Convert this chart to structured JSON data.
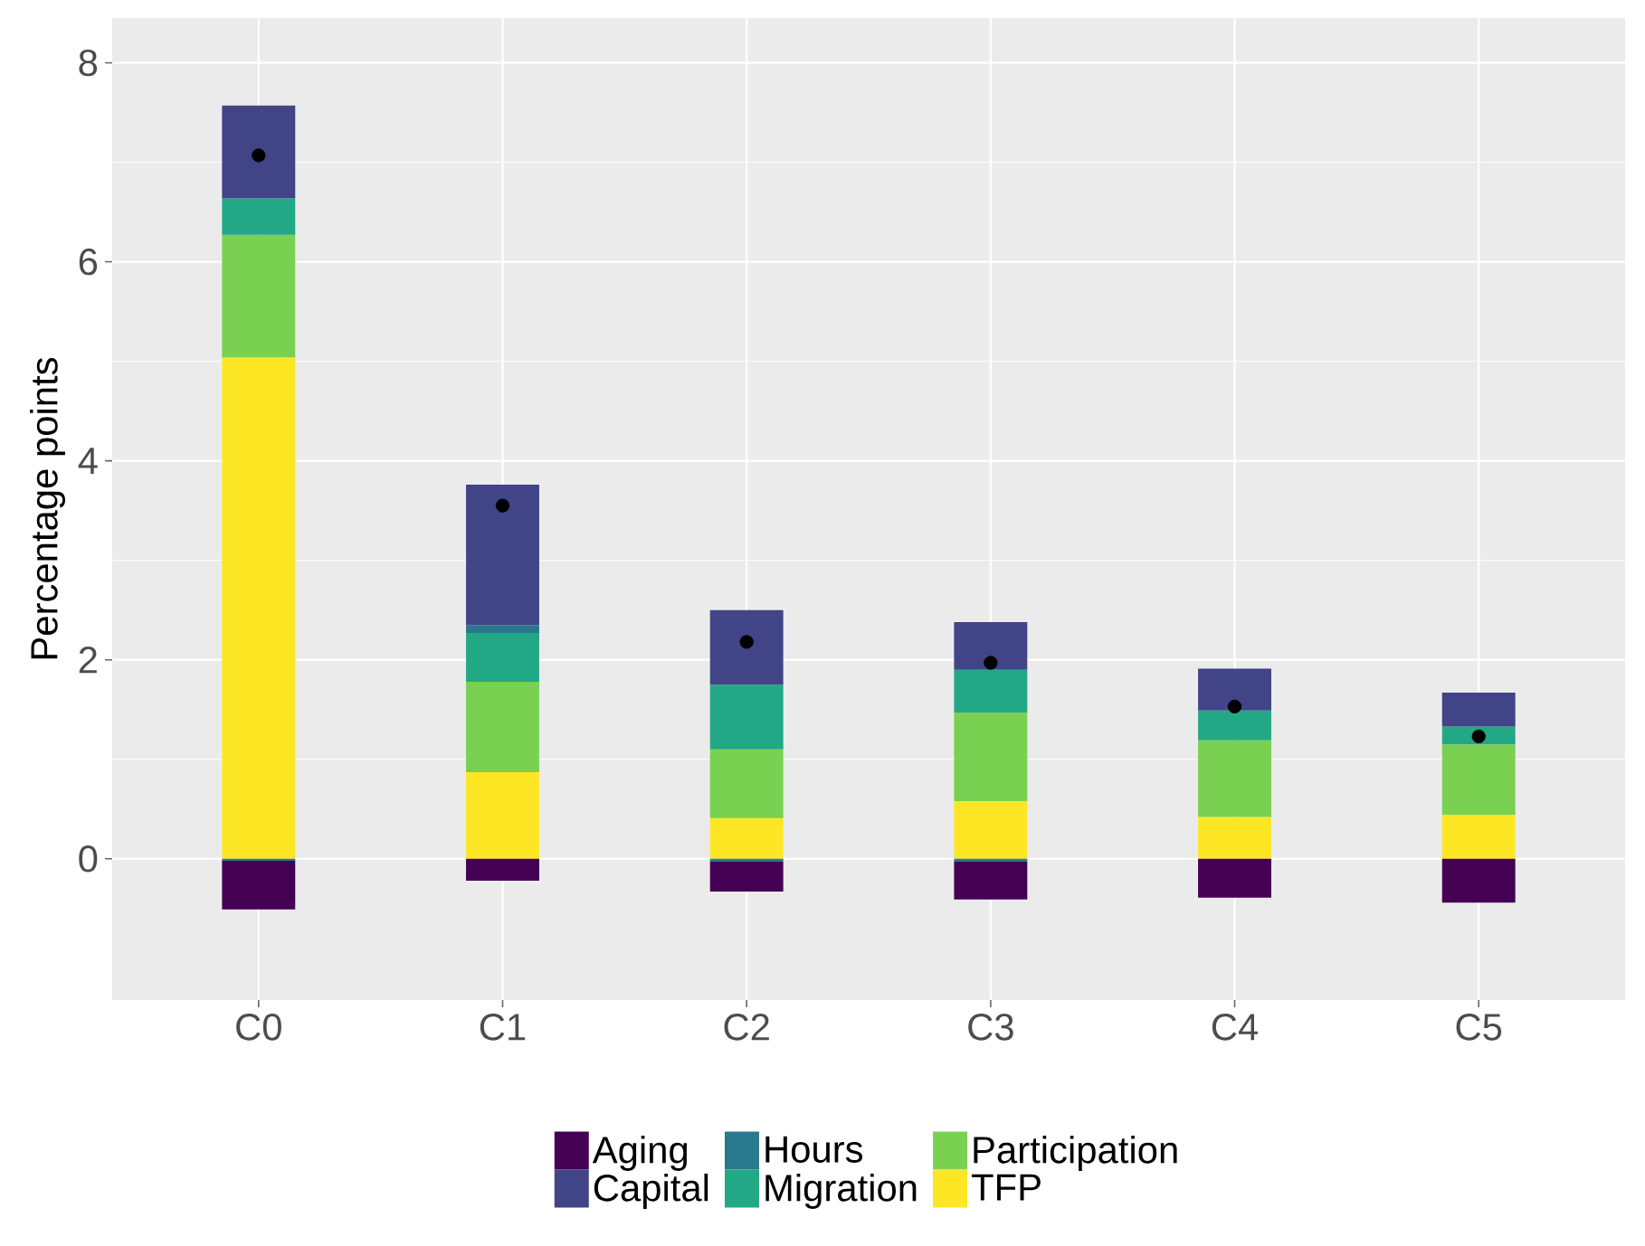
{
  "chart_data": {
    "type": "bar",
    "stacked": true,
    "ylabel": "Percentage points",
    "categories": [
      "C0",
      "C1",
      "C2",
      "C3",
      "C4",
      "C5"
    ],
    "series": [
      {
        "name": "TFP",
        "color": "#fde725",
        "values": [
          5.04,
          0.87,
          0.41,
          0.58,
          0.42,
          0.44
        ]
      },
      {
        "name": "Participation",
        "color": "#7ad151",
        "values": [
          1.23,
          0.91,
          0.69,
          0.89,
          0.77,
          0.71
        ]
      },
      {
        "name": "Migration",
        "color": "#22a884",
        "values": [
          0.37,
          0.49,
          0.65,
          0.43,
          0.3,
          0.18
        ]
      },
      {
        "name": "Hours",
        "color": "#2a788e",
        "values": [
          -0.02,
          0.08,
          -0.03,
          -0.03,
          0,
          0
        ]
      },
      {
        "name": "Capital",
        "color": "#414487",
        "values": [
          0.93,
          1.41,
          0.75,
          0.48,
          0.42,
          0.34
        ]
      },
      {
        "name": "Aging",
        "color": "#440154",
        "values": [
          -0.49,
          -0.22,
          -0.3,
          -0.38,
          -0.39,
          -0.44
        ]
      },
      {
        "type": "scatter",
        "color": "#000000",
        "x": [
          "C0",
          "C1",
          "C2",
          "C3",
          "C4",
          "C5"
        ],
        "values": [
          7.07,
          3.55,
          2.18,
          1.97,
          1.53,
          1.23
        ]
      }
    ],
    "ylim": [
      -1.42,
      8.45
    ],
    "yticks": [
      0,
      2,
      4,
      6,
      8
    ],
    "grid": true,
    "legend": "bottom"
  }
}
